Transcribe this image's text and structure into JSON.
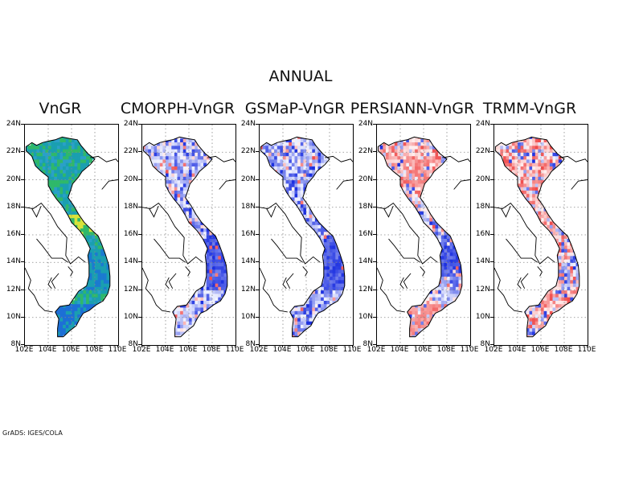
{
  "title": "ANNUAL",
  "credit": "GrADS: IGES/COLA",
  "axes": {
    "lat_labels": [
      "24N",
      "22N",
      "20N",
      "18N",
      "16N",
      "14N",
      "12N",
      "10N",
      "8N"
    ],
    "lon_labels": [
      "102E",
      "104E",
      "106E",
      "108E",
      "110E"
    ],
    "lat_range": [
      8,
      24
    ],
    "lon_range": [
      102,
      110
    ],
    "grid": "dotted"
  },
  "panels": [
    {
      "title": "VnGR",
      "palette": "absolute",
      "fill": "green-blue"
    },
    {
      "title": "CMORPH-VnGR",
      "palette": "diff",
      "bias": "blue"
    },
    {
      "title": "GSMaP-VnGR",
      "palette": "diff",
      "bias": "blue"
    },
    {
      "title": "PERSIANN-VnGR",
      "palette": "diff",
      "bias": "mixed"
    },
    {
      "title": "TRMM-VnGR",
      "palette": "diff",
      "bias": "red"
    }
  ],
  "colors": {
    "blue": "#1a2ee0",
    "light_blue": "#c9d2f7",
    "red": "#f04a4a",
    "light_red": "#f6c9c9",
    "green": "#2fb86a",
    "teal": "#1a9fb0",
    "yellow": "#d8e23a"
  }
}
